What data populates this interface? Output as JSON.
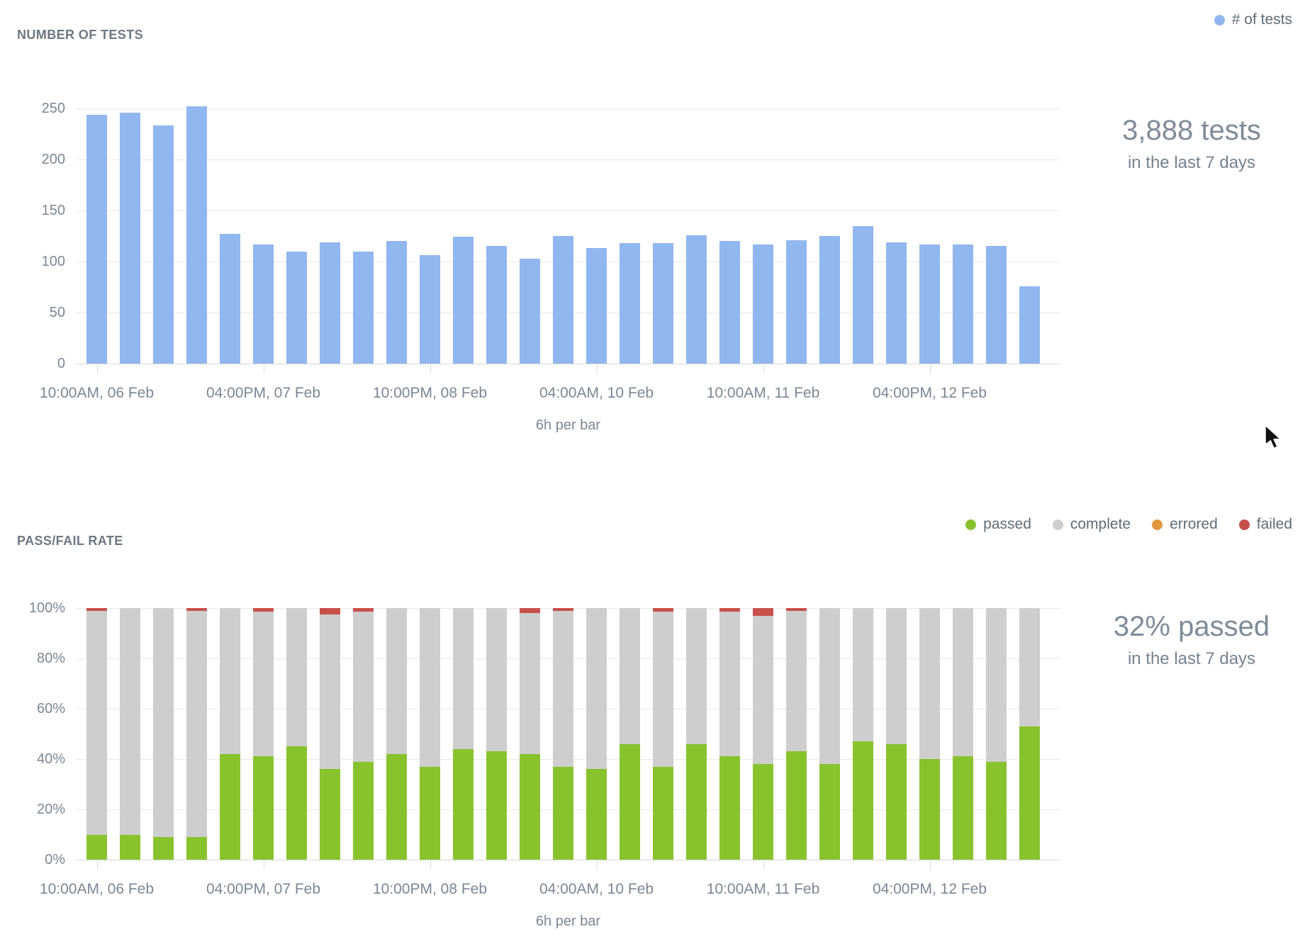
{
  "chart_data": [
    {
      "type": "bar",
      "title": "NUMBER OF TESTS",
      "axis_title": "6h per bar",
      "n_bars": 29,
      "ylim": [
        0,
        250
      ],
      "y_tick_labels": [
        "250",
        "200",
        "150",
        "100",
        "50",
        "0"
      ],
      "x_tick_labels": [
        "10:00AM, 06 Feb",
        "04:00PM, 07 Feb",
        "10:00PM, 08 Feb",
        "04:00AM, 10 Feb",
        "10:00AM, 11 Feb",
        "04:00PM, 12 Feb"
      ],
      "x_tick_bar_indexes": [
        0,
        5,
        10,
        15,
        20,
        25
      ],
      "grid": true,
      "legend_position": "top-right",
      "series": [
        {
          "name": "# of tests",
          "color": "#90b7ef",
          "values": [
            244,
            246,
            233,
            252,
            127,
            117,
            110,
            119,
            110,
            120,
            106,
            124,
            115,
            103,
            125,
            113,
            118,
            118,
            126,
            120,
            117,
            121,
            125,
            135,
            119,
            117,
            117,
            115,
            76
          ]
        }
      ],
      "summary": {
        "value": "3,888 tests",
        "caption": "in the last 7 days"
      }
    },
    {
      "type": "stacked-bar-percent",
      "title": "PASS/FAIL RATE",
      "axis_title": "6h per bar",
      "n_bars": 29,
      "ylim": [
        0,
        100
      ],
      "y_tick_labels": [
        "100%",
        "80%",
        "60%",
        "40%",
        "20%",
        "0%"
      ],
      "x_tick_labels": [
        "10:00AM, 06 Feb",
        "04:00PM, 07 Feb",
        "10:00PM, 08 Feb",
        "04:00AM, 10 Feb",
        "10:00AM, 11 Feb",
        "04:00PM, 12 Feb"
      ],
      "x_tick_bar_indexes": [
        0,
        5,
        10,
        15,
        20,
        25
      ],
      "grid": true,
      "legend_position": "top-right",
      "series": [
        {
          "name": "passed",
          "color": "#88c32e",
          "values": [
            10,
            10,
            9,
            9,
            42,
            41,
            45,
            36,
            39,
            42,
            37,
            44,
            43,
            42,
            37,
            36,
            46,
            37,
            46,
            41,
            38,
            43,
            38,
            47,
            46,
            40,
            41,
            39,
            53
          ]
        },
        {
          "name": "complete",
          "color": "#cecece",
          "values": [
            89,
            90,
            91,
            90,
            58,
            57.5,
            55,
            61.5,
            59.5,
            58,
            63,
            56,
            57,
            56,
            62,
            64,
            54,
            61.5,
            54,
            57.5,
            59,
            56,
            62,
            53,
            54,
            60,
            59,
            61,
            47
          ]
        },
        {
          "name": "errored",
          "color": "#e0983e",
          "values": [
            0,
            0,
            0,
            0,
            0,
            0,
            0,
            0,
            0,
            0,
            0,
            0,
            0,
            0,
            0,
            0,
            0,
            0,
            0,
            0,
            0,
            0,
            0,
            0,
            0,
            0,
            0,
            0,
            0
          ]
        },
        {
          "name": "failed",
          "color": "#c7504a",
          "values": [
            1,
            0,
            0,
            1,
            0,
            1.5,
            0,
            2.5,
            1.5,
            0,
            0,
            0,
            0,
            2,
            1,
            0,
            0,
            1.5,
            0,
            1.5,
            3,
            1,
            0,
            0,
            0,
            0,
            0,
            0,
            0
          ]
        }
      ],
      "summary": {
        "value": "32% passed",
        "caption": "in the last 7 days"
      }
    }
  ]
}
